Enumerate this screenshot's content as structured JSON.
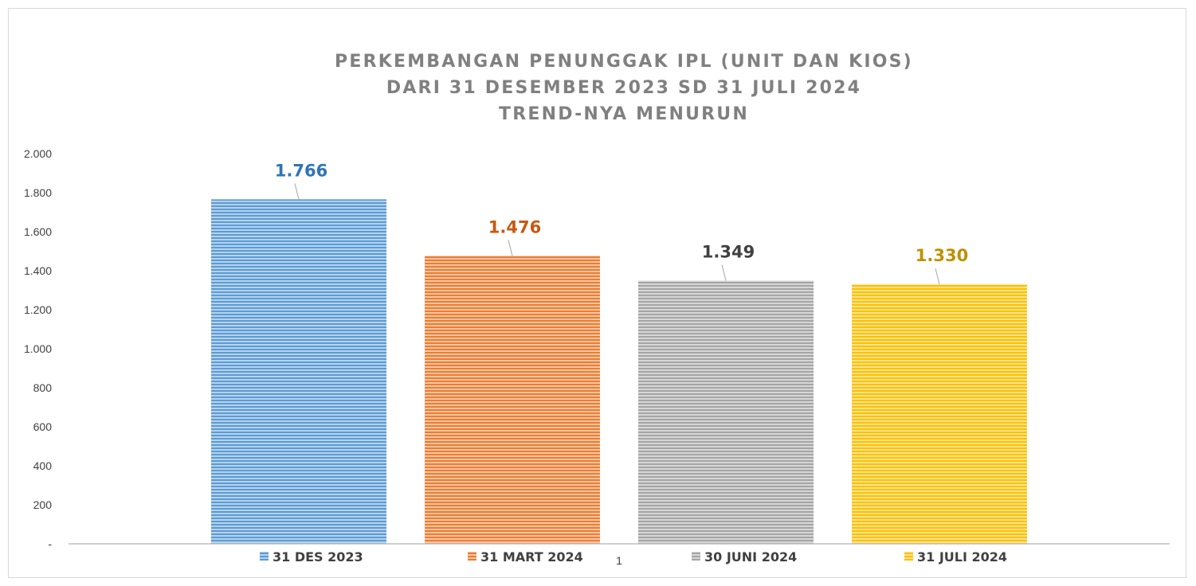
{
  "chart_data": {
    "type": "bar",
    "title_lines": [
      "PERKEMBANGAN PENUNGGAK IPL (UNIT DAN KIOS)",
      "DARI 31 DESEMBER 2023 SD 31 JULI 2024",
      "TREND-NYA MENURUN"
    ],
    "categories": [
      "1"
    ],
    "series": [
      {
        "name": "31 DES 2023",
        "values": [
          1766
        ],
        "label": "1.766",
        "color": "#5b9bd5",
        "label_color": "#2e75b6"
      },
      {
        "name": "31 MART 2024",
        "values": [
          1476
        ],
        "label": "1.476",
        "color": "#ed7d31",
        "label_color": "#c55a11"
      },
      {
        "name": "30 JUNI 2024",
        "values": [
          1349
        ],
        "label": "1.349",
        "color": "#a5a5a5",
        "label_color": "#404040"
      },
      {
        "name": "31 JULI 2024",
        "values": [
          1330
        ],
        "label": "1.330",
        "color": "#ffc000",
        "label_color": "#bf9000"
      }
    ],
    "ylim": [
      0,
      2000
    ],
    "yticks": [
      0,
      200,
      400,
      600,
      800,
      1000,
      1200,
      1400,
      1600,
      1800,
      2000
    ],
    "ytick_labels": [
      "-",
      "200",
      "400",
      "600",
      "800",
      "1.000",
      "1.200",
      "1.400",
      "1.600",
      "1.800",
      "2.000"
    ],
    "grid": false,
    "legend_position": "bottom"
  }
}
